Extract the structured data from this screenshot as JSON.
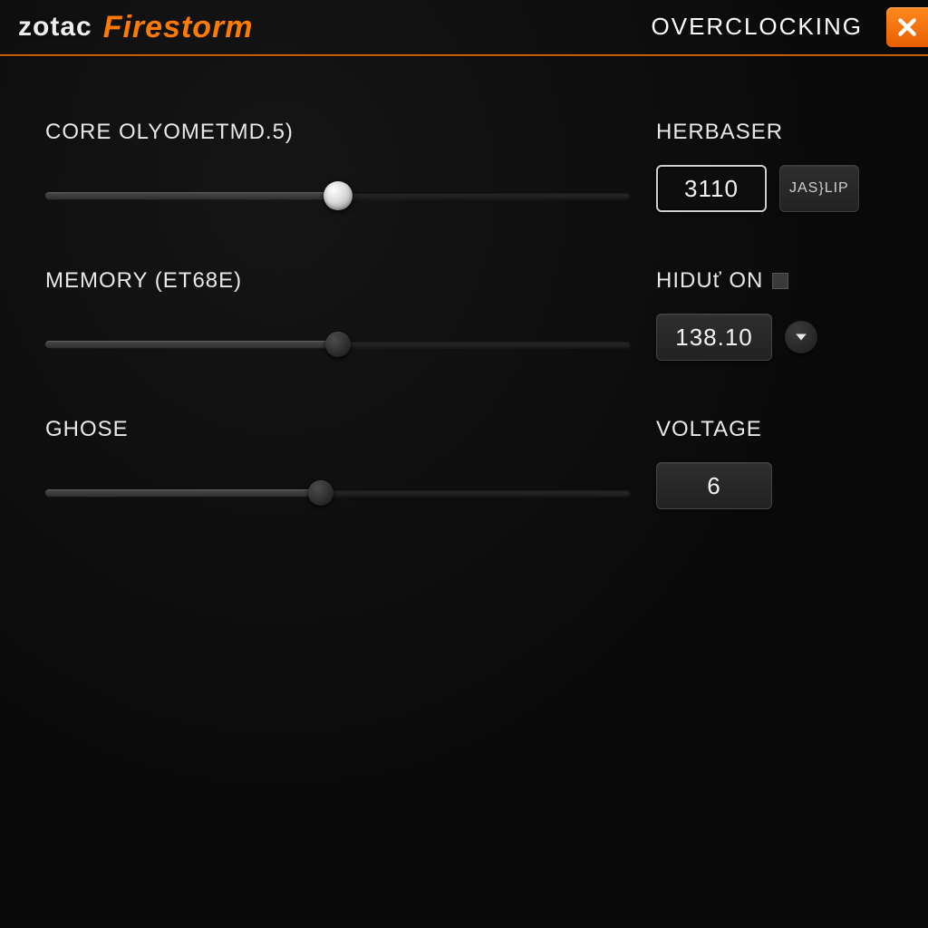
{
  "colors": {
    "accent": "#ff7a00",
    "background": "#0a0a0a",
    "text": "#e8e8e8",
    "track": "#2b2b2b",
    "track_fill": "#4a4a4a",
    "box_bg": "#2e2e2e",
    "outline": "#cfcfcf"
  },
  "header": {
    "brand_primary": "zotac",
    "brand_secondary": "Firestorm",
    "title": "OVERCLOCKING"
  },
  "rows": [
    {
      "left_label": "CORE OLYOMETMD.5)",
      "right_label": "HERBASER",
      "slider": {
        "percent": 50,
        "thumb": "light"
      },
      "value": "3110",
      "value_style": "outlined",
      "value_width": 122,
      "extra": {
        "type": "button",
        "label": "JAS}LIP"
      }
    },
    {
      "left_label": "MEMORY (ET68E)",
      "right_label": "HIDUť ON",
      "right_has_checkbox": true,
      "slider": {
        "percent": 50,
        "thumb": "dark"
      },
      "value": "138.10",
      "value_style": "filled",
      "value_width": 128,
      "extra": {
        "type": "dropdown"
      }
    },
    {
      "left_label": "GHOSE",
      "right_label": "VOLTAGE",
      "slider": {
        "percent": 47,
        "thumb": "dark"
      },
      "value": "6",
      "value_style": "filled",
      "value_width": 128
    }
  ]
}
